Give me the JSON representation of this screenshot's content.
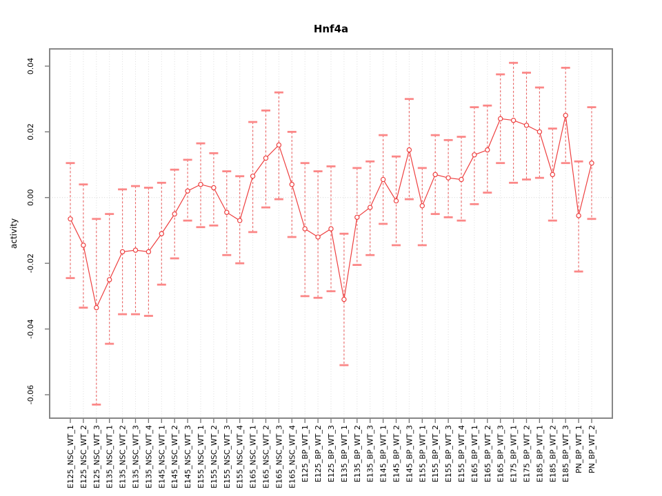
{
  "figure": {
    "title": "Hnf4a",
    "ylabel": "activity"
  },
  "chart_data": {
    "type": "scatter",
    "subtype": "points-with-error-bars",
    "title": "Hnf4a",
    "xlabel": "",
    "ylabel": "activity",
    "grid": "vertical-dotted-per-category",
    "zero_line_dotted": true,
    "legend": "none",
    "ylim": [
      -0.06713,
      0.04524
    ],
    "yticks": [
      0.04,
      0.02,
      0.0,
      -0.02,
      -0.04,
      -0.06
    ],
    "ytick_labels": [
      "0.04",
      "0.02",
      "0.00",
      "-0.02",
      "-0.04",
      "-0.06"
    ],
    "categories": [
      "E125_NSC_WT_1",
      "E125_NSC_WT_2",
      "E125_NSC_WT_3",
      "E135_NSC_WT_1",
      "E135_NSC_WT_2",
      "E135_NSC_WT_3",
      "E135_NSC_WT_4",
      "E145_NSC_WT_1",
      "E145_NSC_WT_2",
      "E145_NSC_WT_3",
      "E155_NSC_WT_1",
      "E155_NSC_WT_2",
      "E155_NSC_WT_3",
      "E155_NSC_WT_4",
      "E165_NSC_WT_1",
      "E165_NSC_WT_2",
      "E165_NSC_WT_3",
      "E165_NSC_WT_4",
      "E125_BP_WT_1",
      "E125_BP_WT_2",
      "E125_BP_WT_3",
      "E135_BP_WT_1",
      "E135_BP_WT_2",
      "E135_BP_WT_3",
      "E145_BP_WT_1",
      "E145_BP_WT_2",
      "E145_BP_WT_3",
      "E155_BP_WT_1",
      "E155_BP_WT_2",
      "E155_BP_WT_3",
      "E155_BP_WT_4",
      "E165_BP_WT_1",
      "E165_BP_WT_2",
      "E165_BP_WT_3",
      "E175_BP_WT_1",
      "E175_BP_WT_2",
      "E185_BP_WT_1",
      "E185_BP_WT_2",
      "E185_BP_WT_3",
      "PN_BP_WT_1",
      "PN_BP_WT_2"
    ],
    "series": [
      {
        "name": "activity",
        "values": [
          -0.0065,
          -0.0145,
          -0.0335,
          -0.025,
          -0.0165,
          -0.016,
          -0.0165,
          -0.011,
          -0.005,
          0.002,
          0.004,
          0.003,
          -0.0045,
          -0.007,
          0.0065,
          0.012,
          0.016,
          0.004,
          -0.0095,
          -0.012,
          -0.0095,
          -0.031,
          -0.006,
          -0.003,
          0.0055,
          -0.001,
          0.0145,
          -0.0025,
          0.007,
          0.006,
          0.0055,
          0.013,
          0.0145,
          0.024,
          0.0235,
          0.022,
          0.02,
          0.007,
          0.025,
          -0.0055,
          0.0105
        ],
        "upper": [
          0.0105,
          0.004,
          -0.0065,
          -0.005,
          0.0025,
          0.0035,
          0.003,
          0.0045,
          0.0085,
          0.0115,
          0.0165,
          0.0135,
          0.008,
          0.0065,
          0.023,
          0.0265,
          0.032,
          0.02,
          0.0105,
          0.008,
          0.0095,
          -0.011,
          0.009,
          0.011,
          0.019,
          0.0125,
          0.03,
          0.009,
          0.019,
          0.0175,
          0.0185,
          0.0275,
          0.028,
          0.0375,
          0.041,
          0.038,
          0.0335,
          0.021,
          0.0395,
          0.011,
          0.0275
        ],
        "lower": [
          -0.0245,
          -0.0335,
          -0.063,
          -0.0445,
          -0.0355,
          -0.0355,
          -0.036,
          -0.0265,
          -0.0185,
          -0.007,
          -0.009,
          -0.0085,
          -0.0175,
          -0.02,
          -0.0105,
          -0.003,
          -0.0005,
          -0.012,
          -0.03,
          -0.0305,
          -0.0285,
          -0.051,
          -0.0205,
          -0.0175,
          -0.008,
          -0.0145,
          -0.0005,
          -0.0145,
          -0.005,
          -0.006,
          -0.007,
          -0.002,
          0.0015,
          0.0105,
          0.0045,
          0.0055,
          0.006,
          -0.007,
          0.0105,
          -0.0225,
          -0.0065
        ]
      }
    ],
    "colors": {
      "point": "#ee3f3f",
      "series_line": "#ee3f3f",
      "whisker_stem": "#e84848",
      "whisker_cap": "#fb8787",
      "grid": "#dcdcdc",
      "zero_line": "#d2d2d2",
      "axis_box": "#868686",
      "tick": "#6e6e6e",
      "text": "#000000"
    }
  }
}
